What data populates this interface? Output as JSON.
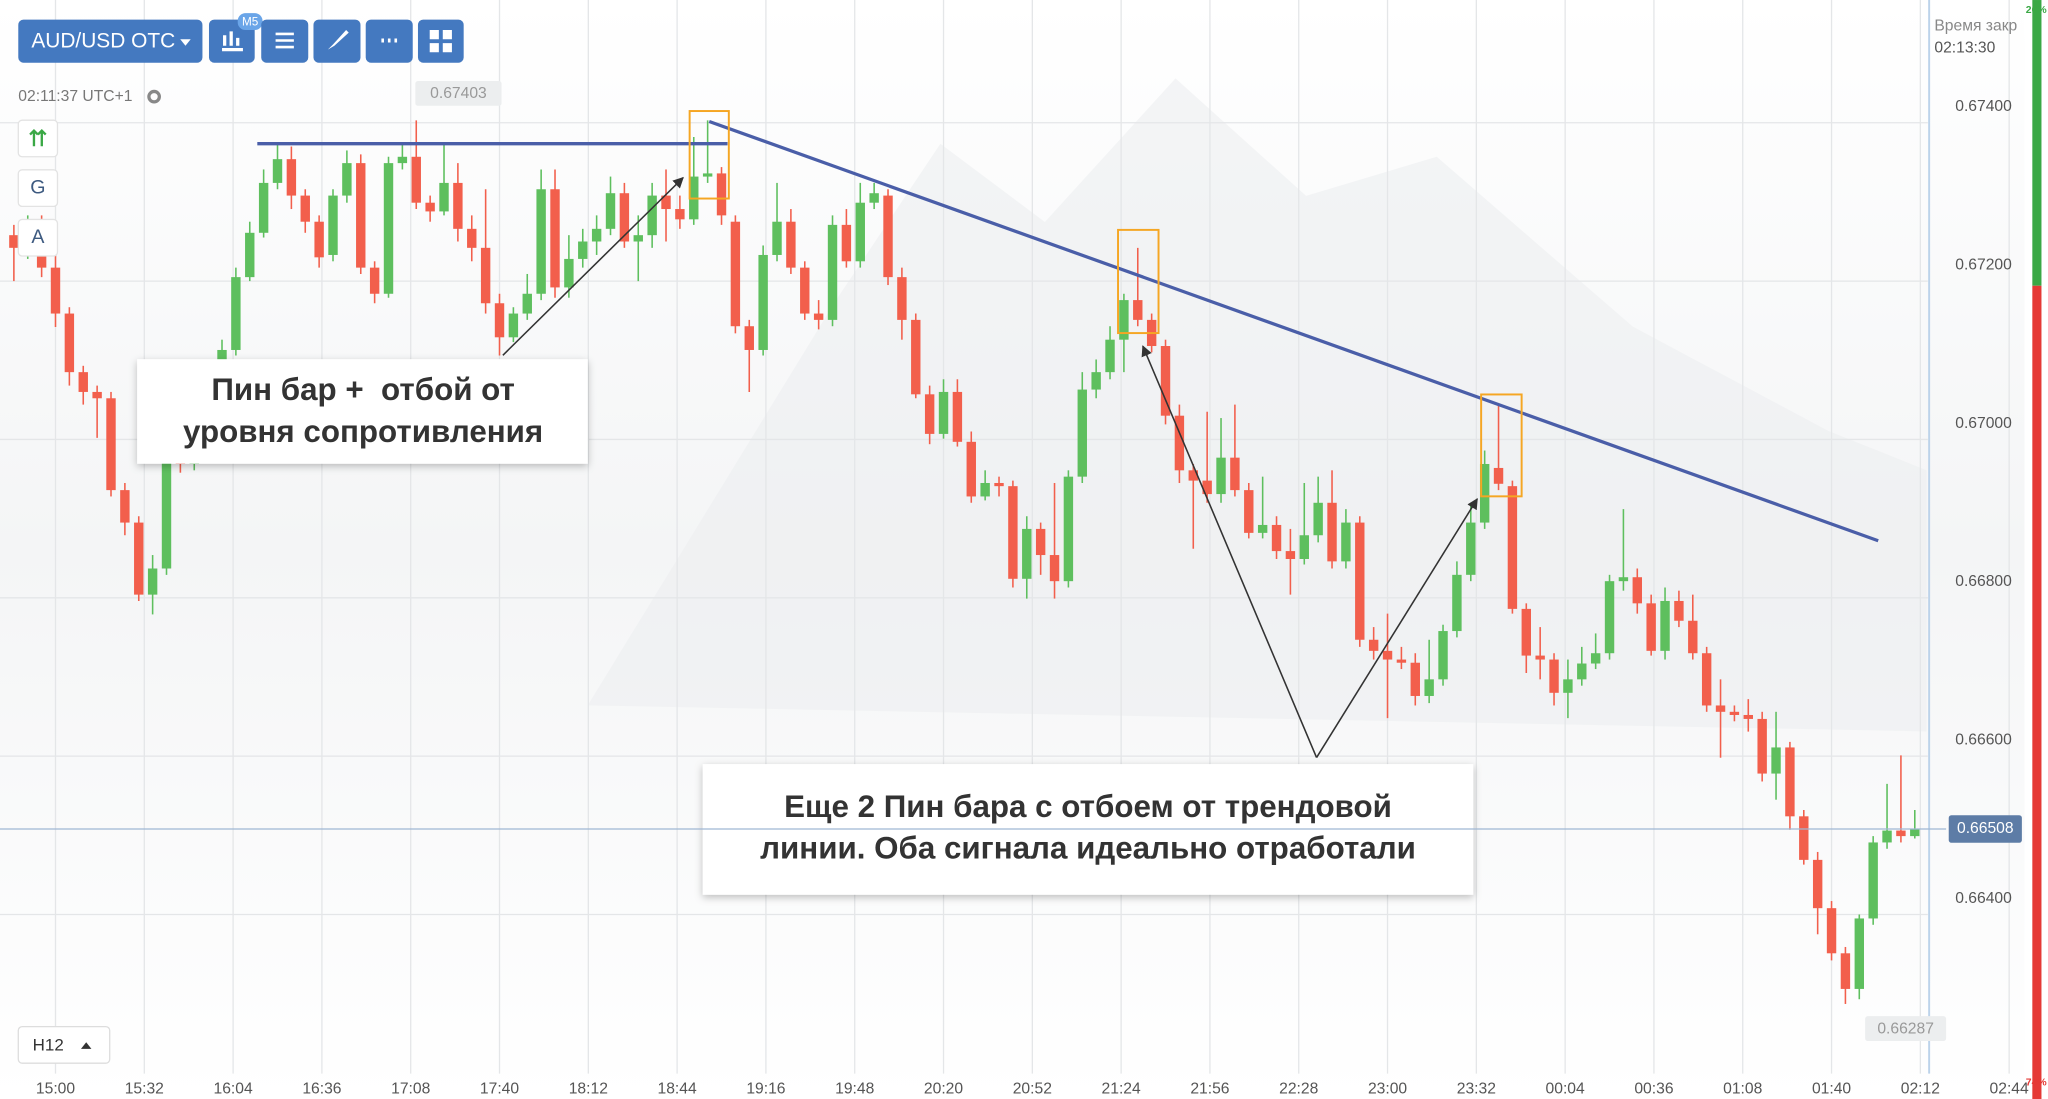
{
  "toolbar": {
    "symbol": "AUD/USD OTC",
    "timeframe_badge": "M5",
    "clock": "02:11:37 UTC+1",
    "left_buttons": [
      "G",
      "A"
    ],
    "interval": "H12"
  },
  "expiry": {
    "label": "Время закр",
    "time": "02:13:30"
  },
  "sentiment": {
    "up": {
      "value": 26,
      "label": "26%"
    },
    "down": {
      "value": 74,
      "label": "74%"
    },
    "up_color": "#3aa845",
    "down_color": "#e53935"
  },
  "chart_data": {
    "type": "candlestick",
    "up_color": "#5ebf5e",
    "down_color": "#f25f4c",
    "grid": true,
    "x": [
      "14:45",
      "14:50",
      "14:55",
      "15:00",
      "15:05",
      "15:10",
      "15:15",
      "15:20",
      "15:25",
      "15:30",
      "15:35",
      "15:40",
      "15:45",
      "15:50",
      "15:55",
      "16:00",
      "16:05",
      "16:10",
      "16:15",
      "16:20",
      "16:25",
      "16:30",
      "16:35",
      "16:40",
      "16:45",
      "16:50",
      "16:55",
      "17:00",
      "17:05",
      "17:10",
      "17:15",
      "17:20",
      "17:25",
      "17:30",
      "17:35",
      "17:40",
      "17:45",
      "17:50",
      "17:55",
      "18:00",
      "18:05",
      "18:10",
      "18:15",
      "18:20",
      "18:25",
      "18:30",
      "18:35",
      "18:40",
      "18:45",
      "18:50",
      "18:55",
      "19:00",
      "19:05",
      "19:10",
      "19:15",
      "19:20",
      "19:25",
      "19:30",
      "19:35",
      "19:40",
      "19:45",
      "19:50",
      "19:55",
      "20:00",
      "20:05",
      "20:10",
      "20:15",
      "20:20",
      "20:25",
      "20:30",
      "20:35",
      "20:40",
      "20:45",
      "20:50",
      "20:55",
      "21:00",
      "21:05",
      "21:10",
      "21:15",
      "21:20",
      "21:25",
      "21:30",
      "21:35",
      "21:40",
      "21:45",
      "21:50",
      "21:55",
      "22:00",
      "22:05",
      "22:10",
      "22:15",
      "22:20",
      "22:25",
      "22:30",
      "22:35",
      "22:40",
      "22:45",
      "22:50",
      "22:55",
      "23:00",
      "23:05",
      "23:10",
      "23:15",
      "23:20",
      "23:25",
      "23:30",
      "23:35",
      "23:40",
      "23:45",
      "23:50",
      "23:55",
      "00:00",
      "00:05",
      "00:10",
      "00:15",
      "00:20",
      "00:25",
      "00:30",
      "00:35",
      "00:40",
      "00:45",
      "00:50",
      "00:55",
      "01:00",
      "01:05",
      "01:10",
      "01:15",
      "01:20",
      "01:25",
      "01:30",
      "01:35",
      "01:40",
      "01:45",
      "01:50",
      "01:55",
      "02:00",
      "02:05",
      "02:10"
    ],
    "open": [
      0.67258,
      0.67242,
      0.67266,
      0.67217,
      0.67159,
      0.67085,
      0.6706,
      0.67052,
      0.66936,
      0.66895,
      0.66804,
      0.66837,
      0.66994,
      0.66969,
      0.66977,
      0.6706,
      0.67113,
      0.67205,
      0.67261,
      0.67324,
      0.67354,
      0.67308,
      0.67275,
      0.67233,
      0.67308,
      0.67349,
      0.67217,
      0.67184,
      0.67349,
      0.67357,
      0.67299,
      0.67288,
      0.67324,
      0.67266,
      0.67242,
      0.67172,
      0.67129,
      0.67159,
      0.67184,
      0.67316,
      0.67192,
      0.67228,
      0.6725,
      0.67266,
      0.67311,
      0.6725,
      0.67258,
      0.67308,
      0.67291,
      0.67278,
      0.67332,
      0.67336,
      0.67275,
      0.67143,
      0.67113,
      0.67233,
      0.67275,
      0.67217,
      0.67159,
      0.67151,
      0.67271,
      0.67225,
      0.67299,
      0.67308,
      0.67205,
      0.67151,
      0.67057,
      0.67007,
      0.6706,
      0.66997,
      0.66928,
      0.66945,
      0.66941,
      0.66824,
      0.66887,
      0.66854,
      0.66821,
      0.66953,
      0.67063,
      0.67085,
      0.67126,
      0.67176,
      0.67151,
      0.67118,
      0.6703,
      0.66961,
      0.66948,
      0.66931,
      0.66977,
      0.66936,
      0.66882,
      0.66892,
      0.66859,
      0.66849,
      0.66879,
      0.6692,
      0.66846,
      0.66895,
      0.66747,
      0.66733,
      0.66722,
      0.66718,
      0.66676,
      0.66697,
      0.66758,
      0.66829,
      0.66895,
      0.66964,
      0.66941,
      0.66786,
      0.66727,
      0.66722,
      0.6668,
      0.66697,
      0.66717,
      0.6673,
      0.66821,
      0.66826,
      0.66793,
      0.66733,
      0.66796,
      0.66771,
      0.6673,
      0.66664,
      0.66656,
      0.66652,
      0.66647,
      0.66578,
      0.66611,
      0.66524,
      0.66469,
      0.66408,
      0.66351,
      0.66306,
      0.66395,
      0.66491,
      0.66506,
      0.66499
    ],
    "high": [
      0.67271,
      0.67283,
      0.67283,
      0.67233,
      0.67167,
      0.67093,
      0.67068,
      0.6706,
      0.66945,
      0.66903,
      0.66854,
      0.6701,
      0.6701,
      0.66994,
      0.67076,
      0.67126,
      0.67217,
      0.67275,
      0.67341,
      0.67374,
      0.6737,
      0.67316,
      0.67283,
      0.67316,
      0.67365,
      0.6736,
      0.67225,
      0.67357,
      0.67374,
      0.67403,
      0.67308,
      0.67374,
      0.67349,
      0.67283,
      0.67316,
      0.67184,
      0.67167,
      0.67209,
      0.67341,
      0.67341,
      0.67258,
      0.67266,
      0.67283,
      0.67332,
      0.67324,
      0.67283,
      0.67324,
      0.67341,
      0.67308,
      0.67382,
      0.67403,
      0.67344,
      0.67283,
      0.67151,
      0.67245,
      0.67324,
      0.67291,
      0.67225,
      0.67176,
      0.67283,
      0.67291,
      0.67324,
      0.67324,
      0.67316,
      0.67217,
      0.67159,
      0.67068,
      0.67076,
      0.67076,
      0.6701,
      0.66961,
      0.66953,
      0.66948,
      0.66903,
      0.66895,
      0.66945,
      0.66961,
      0.67085,
      0.67101,
      0.67143,
      0.67184,
      0.67242,
      0.67159,
      0.67126,
      0.67044,
      0.66969,
      0.67035,
      0.67027,
      0.67044,
      0.66945,
      0.66953,
      0.66903,
      0.66887,
      0.66945,
      0.66953,
      0.66961,
      0.66912,
      0.66903,
      0.66763,
      0.6678,
      0.66738,
      0.6673,
      0.66747,
      0.66766,
      0.66846,
      0.6692,
      0.66986,
      0.67044,
      0.66948,
      0.66793,
      0.66763,
      0.6673,
      0.66722,
      0.66738,
      0.66755,
      0.66829,
      0.66912,
      0.66837,
      0.66804,
      0.66813,
      0.66809,
      0.66804,
      0.66738,
      0.66697,
      0.66664,
      0.66672,
      0.66656,
      0.66656,
      0.66618,
      0.66532,
      0.66479,
      0.66417,
      0.66359,
      0.664,
      0.66499,
      0.66565,
      0.66601,
      0.66532
    ],
    "low": [
      0.672,
      0.67228,
      0.67205,
      0.67142,
      0.67068,
      0.67044,
      0.67002,
      0.66928,
      0.66879,
      0.66796,
      0.66779,
      0.66829,
      0.66958,
      0.66961,
      0.66974,
      0.67052,
      0.67106,
      0.672,
      0.67255,
      0.67316,
      0.67291,
      0.67261,
      0.67217,
      0.67225,
      0.67299,
      0.67209,
      0.67172,
      0.67179,
      0.67341,
      0.67291,
      0.67275,
      0.67283,
      0.6725,
      0.67225,
      0.67159,
      0.67106,
      0.67123,
      0.67151,
      0.67176,
      0.67179,
      0.67179,
      0.67217,
      0.67233,
      0.67258,
      0.67242,
      0.672,
      0.67242,
      0.6725,
      0.67266,
      0.67271,
      0.67324,
      0.67271,
      0.67134,
      0.6706,
      0.67106,
      0.67225,
      0.67209,
      0.67151,
      0.67139,
      0.67143,
      0.67217,
      0.67217,
      0.67291,
      0.67195,
      0.67126,
      0.67052,
      0.66994,
      0.67001,
      0.66991,
      0.6692,
      0.66923,
      0.66928,
      0.66813,
      0.66799,
      0.66829,
      0.66799,
      0.66813,
      0.66945,
      0.67052,
      0.67076,
      0.67085,
      0.67143,
      0.6711,
      0.67019,
      0.66945,
      0.66862,
      0.6692,
      0.6692,
      0.66928,
      0.66875,
      0.66875,
      0.66849,
      0.66804,
      0.66842,
      0.6687,
      0.66837,
      0.66837,
      0.66738,
      0.66722,
      0.66648,
      0.6671,
      0.66664,
      0.66667,
      0.66689,
      0.6675,
      0.66821,
      0.66887,
      0.66936,
      0.6678,
      0.66705,
      0.66697,
      0.66664,
      0.66648,
      0.66689,
      0.6671,
      0.66722,
      0.66809,
      0.6678,
      0.66727,
      0.66722,
      0.66763,
      0.66722,
      0.66656,
      0.66598,
      0.66644,
      0.66631,
      0.66568,
      0.66545,
      0.66507,
      0.66463,
      0.66375,
      0.66342,
      0.66287,
      0.66293,
      0.66387,
      0.66483,
      0.66491,
      0.66496
    ],
    "close": [
      0.67242,
      0.67266,
      0.67217,
      0.67159,
      0.67085,
      0.6706,
      0.67052,
      0.66936,
      0.66895,
      0.66804,
      0.66837,
      0.67002,
      0.66969,
      0.66977,
      0.6706,
      0.67113,
      0.67205,
      0.67261,
      0.67324,
      0.67354,
      0.67308,
      0.67275,
      0.6723,
      0.67308,
      0.67349,
      0.67217,
      0.67184,
      0.67349,
      0.67357,
      0.67299,
      0.67288,
      0.67324,
      0.67266,
      0.67242,
      0.67172,
      0.67129,
      0.67159,
      0.67184,
      0.67316,
      0.67192,
      0.67228,
      0.6725,
      0.67266,
      0.67311,
      0.6725,
      0.67258,
      0.67308,
      0.67291,
      0.67278,
      0.67332,
      0.67336,
      0.67283,
      0.67143,
      0.67113,
      0.67233,
      0.67275,
      0.67217,
      0.67159,
      0.67151,
      0.67271,
      0.67225,
      0.67299,
      0.67311,
      0.67205,
      0.67151,
      0.67057,
      0.67007,
      0.6706,
      0.66997,
      0.66928,
      0.66945,
      0.66941,
      0.66824,
      0.66887,
      0.66854,
      0.66821,
      0.66953,
      0.67063,
      0.67085,
      0.67126,
      0.67176,
      0.67151,
      0.67118,
      0.6703,
      0.66961,
      0.66948,
      0.66931,
      0.66977,
      0.66936,
      0.66882,
      0.66892,
      0.66859,
      0.66849,
      0.66879,
      0.6692,
      0.66846,
      0.66895,
      0.66747,
      0.66733,
      0.66722,
      0.66718,
      0.66676,
      0.66697,
      0.66758,
      0.66829,
      0.66895,
      0.66969,
      0.66944,
      0.66786,
      0.66727,
      0.66722,
      0.6668,
      0.66697,
      0.66717,
      0.6673,
      0.66821,
      0.66826,
      0.66793,
      0.66733,
      0.66796,
      0.66771,
      0.6673,
      0.66664,
      0.66656,
      0.66652,
      0.66647,
      0.66578,
      0.66611,
      0.66524,
      0.66469,
      0.66408,
      0.66351,
      0.66306,
      0.66395,
      0.66491,
      0.66506,
      0.66499,
      0.66508
    ],
    "xlim": [
      "14:40",
      "02:58"
    ],
    "xticks": [
      "15:00",
      "15:32",
      "16:04",
      "16:36",
      "17:08",
      "17:40",
      "18:12",
      "18:44",
      "19:16",
      "19:48",
      "20:20",
      "20:52",
      "21:24",
      "21:56",
      "22:28",
      "23:00",
      "23:32",
      "00:04",
      "00:36",
      "01:08",
      "01:40",
      "02:12",
      "02:44"
    ],
    "ylim": [
      0.66199,
      0.67555
    ],
    "yticks": [
      {
        "value": 0.674,
        "label": "0.67400"
      },
      {
        "value": 0.672,
        "label": "0.67200"
      },
      {
        "value": 0.67,
        "label": "0.67000"
      },
      {
        "value": 0.668,
        "label": "0.66800"
      },
      {
        "value": 0.666,
        "label": "0.66600"
      },
      {
        "value": 0.664,
        "label": "0.66400"
      }
    ],
    "last_price": {
      "value": 0.66508,
      "label": "0.66508"
    },
    "high_label": "0.67403",
    "low_label": "0.66287",
    "annotations": [
      [
        "Пин бар +  отбой от",
        "уровня сопротивления"
      ],
      [
        "Еще 2 Пин бара с отбоем от трендовой",
        "линии. Оба сигнала идеально отработали"
      ]
    ]
  }
}
